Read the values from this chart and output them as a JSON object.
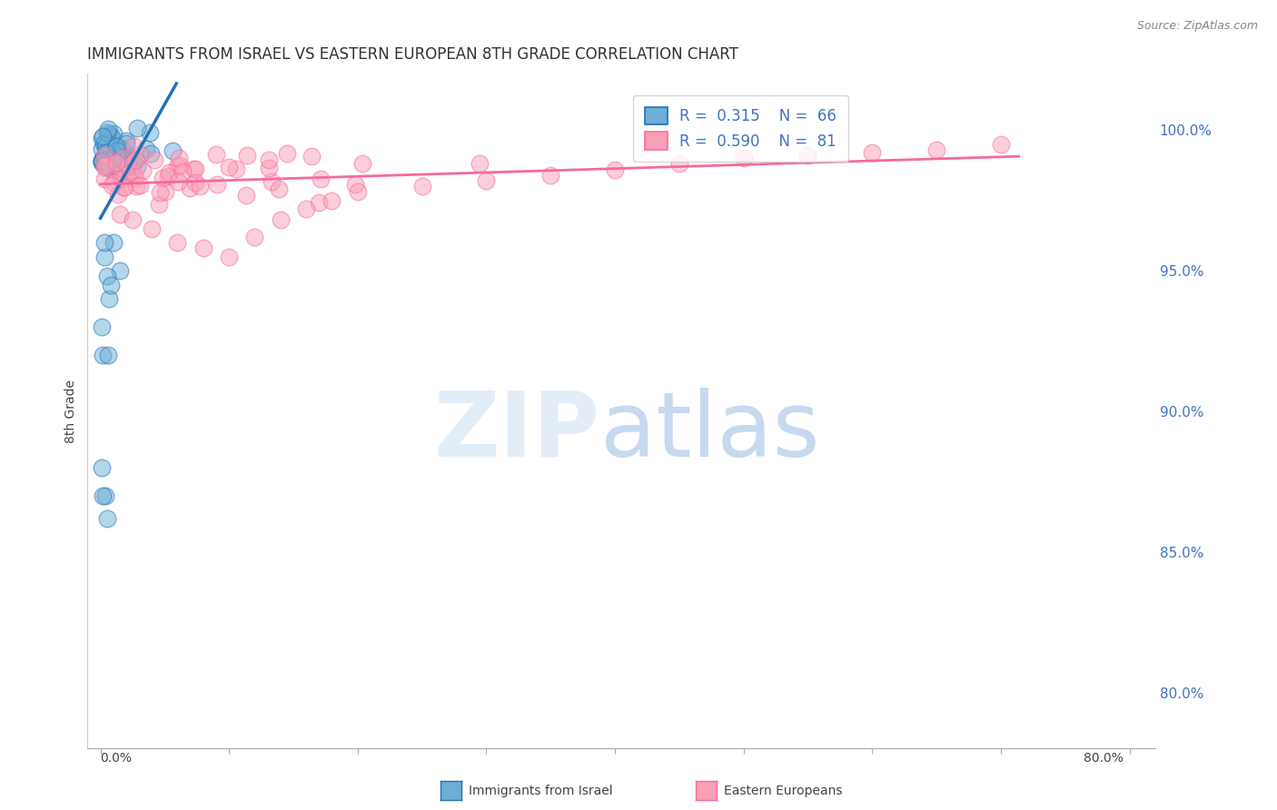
{
  "title": "IMMIGRANTS FROM ISRAEL VS EASTERN EUROPEAN 8TH GRADE CORRELATION CHART",
  "source": "Source: ZipAtlas.com",
  "ylabel": "8th Grade",
  "ytick_labels": [
    "80.0%",
    "85.0%",
    "90.0%",
    "95.0%",
    "100.0%"
  ],
  "ytick_values": [
    0.8,
    0.85,
    0.9,
    0.95,
    1.0
  ],
  "xlim": [
    -0.01,
    0.82
  ],
  "ylim": [
    0.78,
    1.02
  ],
  "legend_r1": "0.315",
  "legend_n1": "66",
  "legend_r2": "0.590",
  "legend_n2": "81",
  "color_blue": "#6baed6",
  "color_pink": "#fa9fb5",
  "color_blue_line": "#2171b5",
  "color_pink_line": "#f768a1",
  "label_blue": "Immigrants from Israel",
  "label_pink": "Eastern Europeans"
}
